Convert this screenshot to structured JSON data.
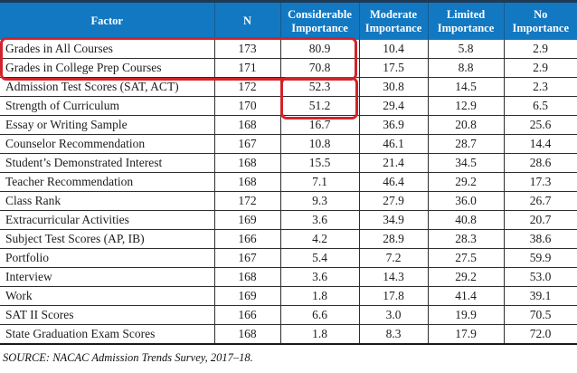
{
  "table": {
    "columns": [
      {
        "key": "factor",
        "label": "Factor"
      },
      {
        "key": "n",
        "label": "N"
      },
      {
        "key": "considerable",
        "label": "Considerable Importance"
      },
      {
        "key": "moderate",
        "label": "Moderate Importance"
      },
      {
        "key": "limited",
        "label": "Limited Importance"
      },
      {
        "key": "no",
        "label": "No Importance"
      }
    ],
    "rows": [
      [
        "Grades in All Courses",
        "173",
        "80.9",
        "10.4",
        "5.8",
        "2.9"
      ],
      [
        "Grades in College Prep Courses",
        "171",
        "70.8",
        "17.5",
        "8.8",
        "2.9"
      ],
      [
        "Admission Test Scores (SAT, ACT)",
        "172",
        "52.3",
        "30.8",
        "14.5",
        "2.3"
      ],
      [
        "Strength of Curriculum",
        "170",
        "51.2",
        "29.4",
        "12.9",
        "6.5"
      ],
      [
        "Essay or Writing Sample",
        "168",
        "16.7",
        "36.9",
        "20.8",
        "25.6"
      ],
      [
        "Counselor Recommendation",
        "167",
        "10.8",
        "46.1",
        "28.7",
        "14.4"
      ],
      [
        "Student’s Demonstrated Interest",
        "168",
        "15.5",
        "21.4",
        "34.5",
        "28.6"
      ],
      [
        "Teacher Recommendation",
        "168",
        "7.1",
        "46.4",
        "29.2",
        "17.3"
      ],
      [
        "Class Rank",
        "172",
        "9.3",
        "27.9",
        "36.0",
        "26.7"
      ],
      [
        "Extracurricular Activities",
        "169",
        "3.6",
        "34.9",
        "40.8",
        "20.7"
      ],
      [
        "Subject Test Scores (AP, IB)",
        "166",
        "4.2",
        "28.9",
        "28.3",
        "38.6"
      ],
      [
        "Portfolio",
        "167",
        "5.4",
        "7.2",
        "27.5",
        "59.9"
      ],
      [
        "Interview",
        "168",
        "3.6",
        "14.3",
        "29.2",
        "53.0"
      ],
      [
        "Work",
        "169",
        "1.8",
        "17.8",
        "41.4",
        "39.1"
      ],
      [
        "SAT II Scores",
        "166",
        "6.6",
        "3.0",
        "19.9",
        "70.5"
      ],
      [
        "State Graduation Exam Scores",
        "168",
        "1.8",
        "8.3",
        "17.9",
        "72.0"
      ]
    ]
  },
  "highlights": [
    {
      "name": "top-two-grade-rows",
      "color": "#d2232a"
    },
    {
      "name": "test-scores-curriculum-considerable-cells",
      "color": "#d2232a"
    }
  ],
  "source_note": "SOURCE: NACAC Admission Trends Survey, 2017–18.",
  "colors": {
    "header_background": "#1278c2",
    "header_text": "#ffffff",
    "highlight_red": "#d2232a"
  }
}
